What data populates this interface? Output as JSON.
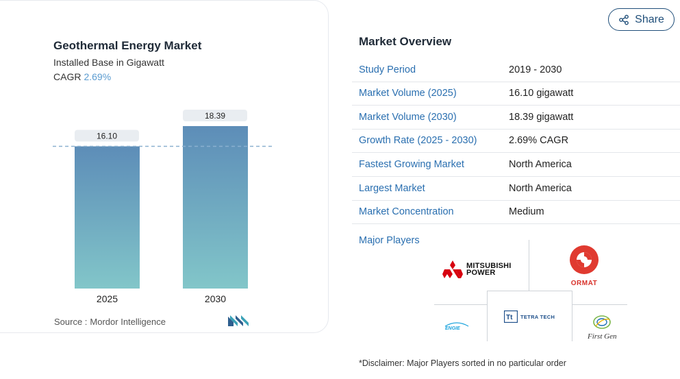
{
  "chart_data": {
    "type": "bar",
    "title": "Geothermal Energy Market",
    "subtitle": "Installed Base in Gigawatt",
    "cagr_label": "CAGR",
    "cagr_value": "2.69%",
    "categories": [
      "2025",
      "2030"
    ],
    "values": [
      16.1,
      18.39
    ],
    "value_labels": [
      "16.10",
      "18.39"
    ],
    "reference_line": 16.1,
    "ylim": [
      0,
      20
    ],
    "grid": false,
    "legend": "none",
    "colors": {
      "bar_top": "#5d8db8",
      "bar_bottom": "#82c6c9",
      "dashed_line": "#8ab0cf",
      "label_bg": "#e9edf1"
    }
  },
  "source": {
    "label": "Source :",
    "name": "Mordor Intelligence"
  },
  "share": {
    "label": "Share",
    "icon": "share-icon"
  },
  "overview": {
    "title": "Market Overview",
    "rows": [
      {
        "label": "Study Period",
        "value": "2019 - 2030"
      },
      {
        "label": "Market Volume (2025)",
        "value": "16.10 gigawatt"
      },
      {
        "label": "Market Volume (2030)",
        "value": "18.39 gigawatt"
      },
      {
        "label": "Growth Rate (2025 - 2030)",
        "value": "2.69% CAGR"
      },
      {
        "label": "Fastest Growing Market",
        "value": "North America"
      },
      {
        "label": "Largest Market",
        "value": "North America"
      },
      {
        "label": "Market Concentration",
        "value": "Medium"
      }
    ],
    "major_players_label": "Major Players",
    "players": [
      "MITSUBISHI POWER",
      "ORMAT",
      "TETRA TECH",
      "ENGIE",
      "First Gen"
    ]
  },
  "disclaimer": "*Disclaimer: Major Players sorted in no particular order"
}
